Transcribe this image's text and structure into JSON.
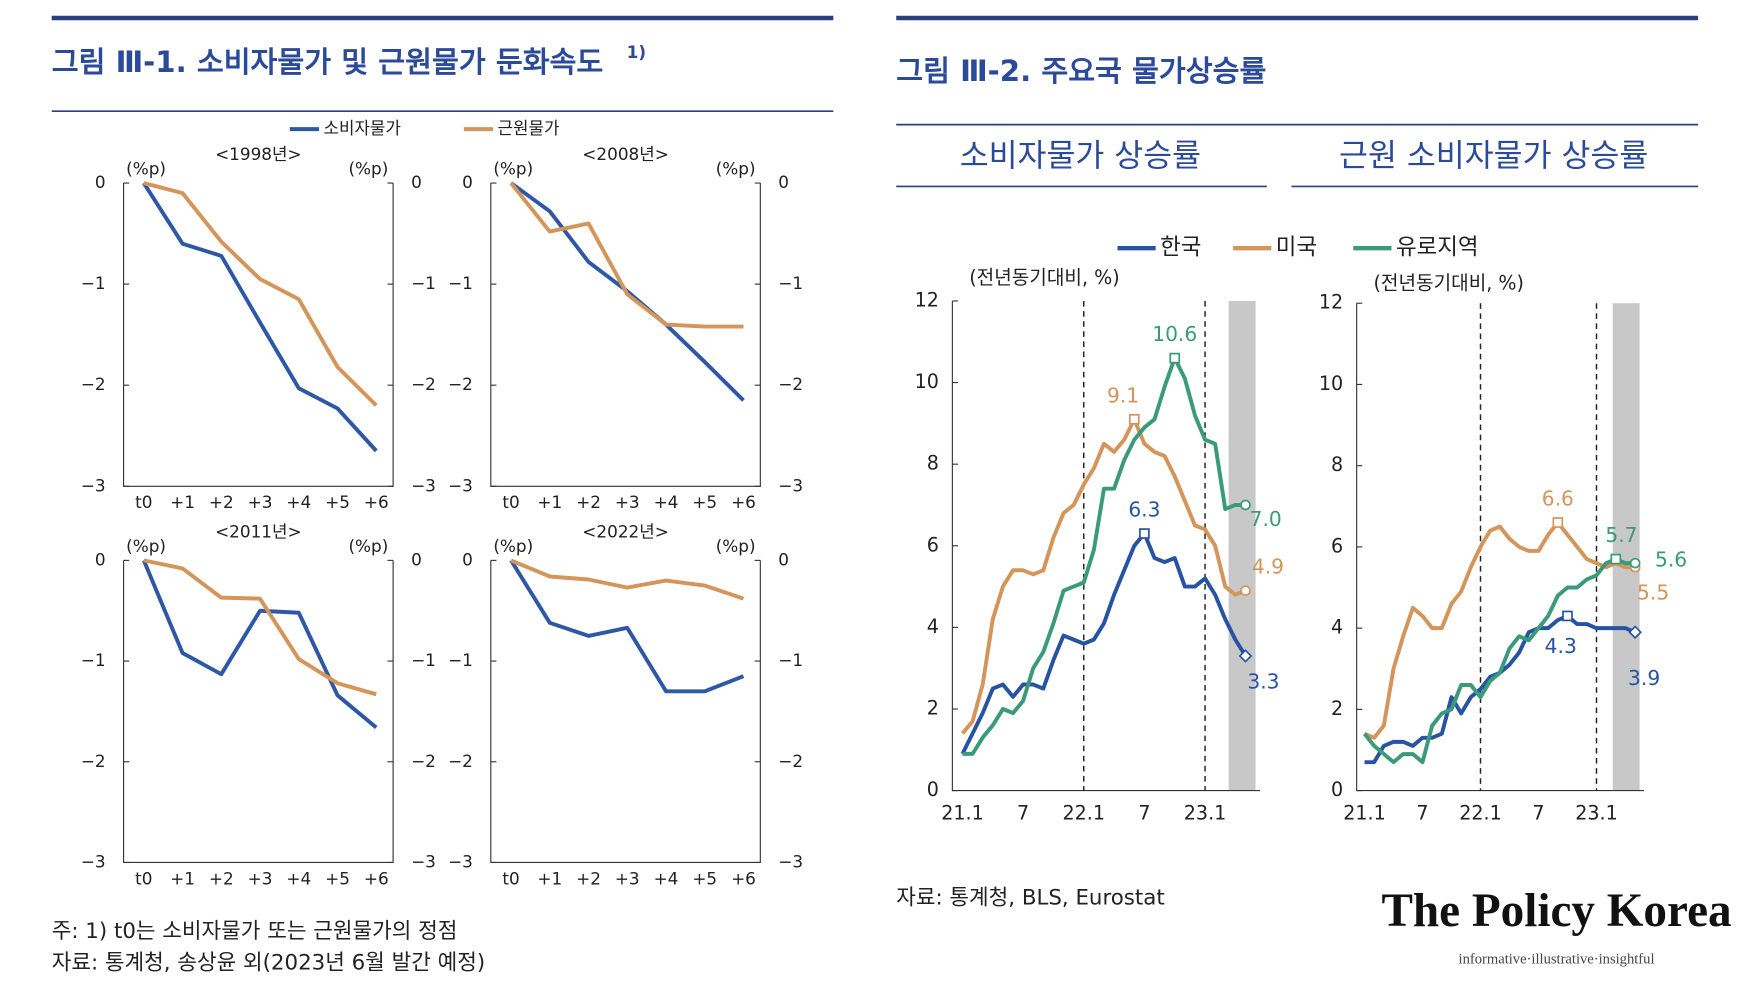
{
  "figure1": {
    "title": "그림 Ⅲ-1. 소비자물가 및 근원물가 둔화속도",
    "title_note": "1)"
  },
  "figure2": {
    "title": "그림 Ⅲ-2. 주요국 물가상승률"
  },
  "chart_data": [
    {
      "type": "line",
      "title": "<1998년>",
      "y_unit": "(%p)",
      "y2_unit": "(%p)",
      "categories": [
        "t0",
        "+1",
        "+2",
        "+3",
        "+4",
        "+5",
        "+6"
      ],
      "series": [
        {
          "name": "소비자물가",
          "color": "#2e57a6",
          "values": [
            0,
            -0.6,
            -0.72,
            -1.38,
            -2.03,
            -2.23,
            -2.65
          ]
        },
        {
          "name": "근원물가",
          "color": "#d4955a",
          "values": [
            0,
            -0.1,
            -0.58,
            -0.95,
            -1.15,
            -1.82,
            -2.2
          ]
        }
      ],
      "ylim": [
        -3,
        0
      ],
      "yticks": [
        0,
        {
          "value": -1,
          "label": "−1"
        },
        {
          "value": -2,
          "label": "−2"
        },
        {
          "value": -3,
          "label": "−3"
        }
      ],
      "y2lim": [
        -3,
        0
      ],
      "y2ticks": [
        0,
        {
          "value": -1,
          "label": "−1"
        },
        {
          "value": -2,
          "label": "−2"
        },
        {
          "value": -3,
          "label": "−3"
        }
      ]
    },
    {
      "type": "line",
      "title": "<2008년>",
      "y_unit": "(%p)",
      "y2_unit": "(%p)",
      "categories": [
        "t0",
        "+1",
        "+2",
        "+3",
        "+4",
        "+5",
        "+6"
      ],
      "series": [
        {
          "name": "소비자물가",
          "color": "#2e57a6",
          "values": [
            0,
            -0.28,
            -0.78,
            -1.07,
            -1.4,
            -1.77,
            -2.15
          ]
        },
        {
          "name": "근원물가",
          "color": "#d4955a",
          "values": [
            0,
            -0.48,
            -0.4,
            -1.1,
            -1.4,
            -1.42,
            -1.42
          ]
        }
      ],
      "ylim": [
        -3,
        0
      ],
      "yticks": [
        0,
        {
          "value": -1,
          "label": "−1"
        },
        {
          "value": -2,
          "label": "−2"
        },
        {
          "value": -3,
          "label": "−3"
        }
      ],
      "y2lim": [
        -3,
        0
      ],
      "y2ticks": [
        0,
        {
          "value": -1,
          "label": "−1"
        },
        {
          "value": -2,
          "label": "−2"
        },
        {
          "value": -3,
          "label": "−3"
        }
      ]
    },
    {
      "type": "line",
      "title": "<2011년>",
      "y_unit": "(%p)",
      "y2_unit": "(%p)",
      "categories": [
        "t0",
        "+1",
        "+2",
        "+3",
        "+4",
        "+5",
        "+6"
      ],
      "series": [
        {
          "name": "소비자물가",
          "color": "#2e57a6",
          "values": [
            0,
            -0.92,
            -1.13,
            -0.5,
            -0.52,
            -1.34,
            -1.66
          ]
        },
        {
          "name": "근원물가",
          "color": "#d4955a",
          "values": [
            0,
            -0.08,
            -0.37,
            -0.38,
            -0.98,
            -1.22,
            -1.33
          ]
        }
      ],
      "ylim": [
        -3,
        0
      ],
      "yticks": [
        0,
        {
          "value": -1,
          "label": "−1"
        },
        {
          "value": -2,
          "label": "−2"
        },
        {
          "value": -3,
          "label": "−3"
        }
      ],
      "y2lim": [
        -3,
        0
      ],
      "y2ticks": [
        0,
        {
          "value": -1,
          "label": "−1"
        },
        {
          "value": -2,
          "label": "−2"
        },
        {
          "value": -3,
          "label": "−3"
        }
      ]
    },
    {
      "type": "line",
      "title": "<2022년>",
      "y_unit": "(%p)",
      "y2_unit": "(%p)",
      "categories": [
        "t0",
        "+1",
        "+2",
        "+3",
        "+4",
        "+5",
        "+6"
      ],
      "series": [
        {
          "name": "소비자물가",
          "color": "#2e57a6",
          "values": [
            0,
            -0.62,
            -0.75,
            -0.67,
            -1.3,
            -1.3,
            -1.15
          ]
        },
        {
          "name": "근원물가",
          "color": "#d4955a",
          "values": [
            0,
            -0.16,
            -0.19,
            -0.27,
            -0.2,
            -0.25,
            -0.38
          ]
        }
      ],
      "ylim": [
        -3,
        0
      ],
      "yticks": [
        0,
        {
          "value": -1,
          "label": "−1"
        },
        {
          "value": -2,
          "label": "−2"
        },
        {
          "value": -3,
          "label": "−3"
        }
      ],
      "y2lim": [
        -3,
        0
      ],
      "y2ticks": [
        0,
        {
          "value": -1,
          "label": "−1"
        },
        {
          "value": -2,
          "label": "−2"
        },
        {
          "value": -3,
          "label": "−3"
        }
      ]
    },
    {
      "type": "line",
      "title": "소비자물가 상승률",
      "y_label": "(전년동기대비, %)",
      "categories": [
        "21.1",
        null,
        null,
        null,
        null,
        null,
        "7",
        null,
        null,
        null,
        null,
        null,
        "22.1",
        null,
        null,
        null,
        null,
        null,
        "7",
        null,
        null,
        null,
        null,
        null,
        "23.1",
        null,
        null,
        null,
        null
      ],
      "reference_lines": [
        "22.1",
        "23.1"
      ],
      "series": [
        {
          "name": "한국",
          "color": "#2753a3",
          "values": [
            0.9,
            1.4,
            1.9,
            2.5,
            2.6,
            2.3,
            2.6,
            2.6,
            2.5,
            3.2,
            3.8,
            3.7,
            3.6,
            3.7,
            4.1,
            4.8,
            5.4,
            6.0,
            6.3,
            5.7,
            5.6,
            5.7,
            5.0,
            5.0,
            5.2,
            4.8,
            4.2,
            3.7,
            3.3
          ],
          "value_labels": [
            null,
            null,
            null,
            null,
            null,
            null,
            null,
            null,
            null,
            null,
            null,
            null,
            null,
            null,
            null,
            null,
            null,
            null,
            "6.3",
            null,
            null,
            null,
            null,
            null,
            null,
            null,
            null,
            null,
            "3.3"
          ]
        },
        {
          "name": "미국",
          "color": "#d4955a",
          "values": [
            1.4,
            1.7,
            2.6,
            4.2,
            5.0,
            5.4,
            5.4,
            5.3,
            5.4,
            6.2,
            6.8,
            7.0,
            7.5,
            7.9,
            8.5,
            8.3,
            8.6,
            9.1,
            8.5,
            8.3,
            8.2,
            7.7,
            7.1,
            6.5,
            6.4,
            6.0,
            5.0,
            4.8,
            4.9
          ],
          "value_labels": [
            null,
            null,
            null,
            null,
            null,
            null,
            null,
            null,
            null,
            null,
            null,
            null,
            null,
            null,
            null,
            null,
            null,
            "9.1",
            null,
            null,
            null,
            null,
            null,
            null,
            null,
            null,
            null,
            null,
            "4.9"
          ]
        },
        {
          "name": "유로지역",
          "color": "#3a9a7a",
          "values": [
            0.9,
            0.9,
            1.3,
            1.6,
            2.0,
            1.9,
            2.2,
            3.0,
            3.4,
            4.1,
            4.9,
            5.0,
            5.1,
            5.9,
            7.4,
            7.4,
            8.1,
            8.6,
            8.9,
            9.1,
            9.9,
            10.6,
            10.1,
            9.2,
            8.6,
            8.5,
            6.9,
            7.0,
            7.0
          ],
          "value_labels": [
            null,
            null,
            null,
            null,
            null,
            null,
            null,
            null,
            null,
            null,
            null,
            null,
            null,
            null,
            null,
            null,
            null,
            null,
            null,
            null,
            null,
            "10.6",
            null,
            null,
            null,
            null,
            null,
            null,
            "7.0"
          ]
        }
      ],
      "ylim": [
        0,
        12
      ],
      "yticks": [
        0,
        2,
        4,
        6,
        8,
        10,
        12
      ]
    },
    {
      "type": "line",
      "title": "근원 소비자물가 상승률",
      "y_label": "(전년동기대비, %)",
      "categories": [
        "21.1",
        null,
        null,
        null,
        null,
        null,
        "7",
        null,
        null,
        null,
        null,
        null,
        "22.1",
        null,
        null,
        null,
        null,
        null,
        "7",
        null,
        null,
        null,
        null,
        null,
        "23.1",
        null,
        null,
        null,
        null
      ],
      "reference_lines": [
        "22.1",
        "23.1"
      ],
      "series": [
        {
          "name": "한국",
          "color": "#2753a3",
          "values": [
            0.7,
            0.7,
            1.1,
            1.2,
            1.2,
            1.1,
            1.3,
            1.3,
            1.4,
            2.3,
            1.9,
            2.3,
            2.5,
            2.8,
            2.9,
            3.1,
            3.4,
            3.9,
            4.0,
            4.0,
            4.2,
            4.3,
            4.1,
            4.1,
            4.0,
            4.0,
            4.0,
            4.0,
            3.9
          ],
          "value_labels": [
            null,
            null,
            null,
            null,
            null,
            null,
            null,
            null,
            null,
            null,
            null,
            null,
            null,
            null,
            null,
            null,
            null,
            null,
            null,
            null,
            null,
            "4.3",
            null,
            null,
            null,
            null,
            null,
            null,
            "3.9"
          ]
        },
        {
          "name": "미국",
          "color": "#d4955a",
          "values": [
            1.4,
            1.3,
            1.6,
            3.0,
            3.8,
            4.5,
            4.3,
            4.0,
            4.0,
            4.6,
            4.9,
            5.5,
            6.0,
            6.4,
            6.5,
            6.2,
            6.0,
            5.9,
            5.9,
            6.3,
            6.6,
            6.3,
            6.0,
            5.7,
            5.6,
            5.5,
            5.6,
            5.5,
            5.5
          ],
          "value_labels": [
            null,
            null,
            null,
            null,
            null,
            null,
            null,
            null,
            null,
            null,
            null,
            null,
            null,
            null,
            null,
            null,
            null,
            null,
            null,
            null,
            "6.6",
            null,
            null,
            null,
            null,
            null,
            null,
            null,
            "5.5"
          ]
        },
        {
          "name": "유로지역",
          "color": "#3a9a7a",
          "values": [
            1.4,
            1.1,
            0.9,
            0.7,
            0.9,
            0.9,
            0.7,
            1.6,
            1.9,
            2.0,
            2.6,
            2.6,
            2.3,
            2.7,
            2.9,
            3.5,
            3.8,
            3.7,
            4.0,
            4.3,
            4.8,
            5.0,
            5.0,
            5.2,
            5.3,
            5.6,
            5.7,
            5.6,
            5.6
          ],
          "value_labels": [
            null,
            null,
            null,
            null,
            null,
            null,
            null,
            null,
            null,
            null,
            null,
            null,
            null,
            null,
            null,
            null,
            null,
            null,
            null,
            null,
            null,
            null,
            null,
            null,
            null,
            null,
            "5.7",
            null,
            "5.6"
          ]
        }
      ],
      "ylim": [
        0,
        12
      ],
      "yticks": [
        0,
        2,
        4,
        6,
        8,
        10,
        12
      ]
    }
  ],
  "notes": {
    "figure1": [
      "주: 1) t0는 소비자물가 또는 근원물가의 정점",
      "자료: 통계청, 송상윤 외(2023년 6월 발간 예정)"
    ],
    "figure2": [
      "자료: 통계청, BLS, Eurostat"
    ]
  },
  "logo": {
    "name": "The Policy Korea",
    "tagline": "informative·illustrative·insightful"
  }
}
